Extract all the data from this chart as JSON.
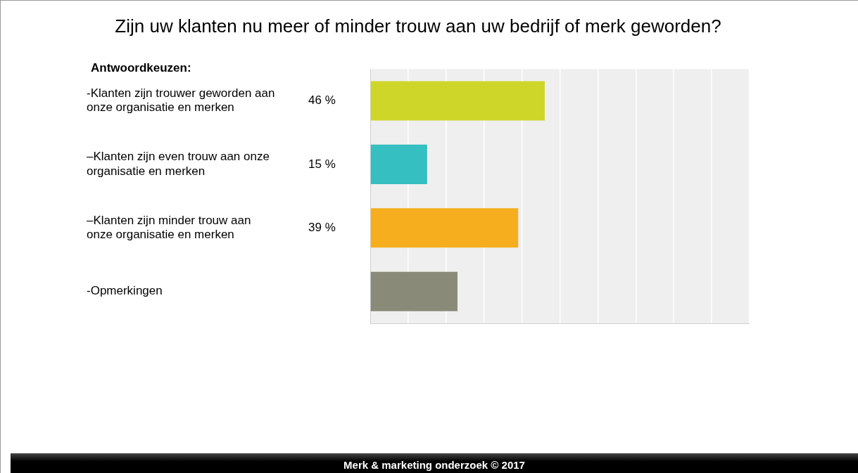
{
  "chart_data": {
    "type": "bar",
    "orientation": "horizontal",
    "title": "Zijn uw klanten nu meer of minder trouw aan uw bedrijf of merk geworden?",
    "categories": [
      "-Klanten zijn trouwer geworden aan onze organisatie en merken",
      "–Klanten zijn even trouw aan onze organisatie en merken",
      "–Klanten zijn minder trouw aan onze organisatie en merken",
      "-Opmerkingen"
    ],
    "values": [
      46,
      15,
      39,
      23
    ],
    "value_labels": [
      "46 %",
      "15 %",
      "39 %",
      null
    ],
    "colors": [
      "#cfd62a",
      "#35bfc0",
      "#f6ae1f",
      "#8a8a78"
    ],
    "xlim": [
      0,
      100
    ],
    "xticks": [
      {
        "value": 0,
        "label": null
      },
      {
        "value": 10,
        "label": null
      },
      {
        "value": 20,
        "label": null
      },
      {
        "value": 30,
        "label": null
      },
      {
        "value": 40,
        "label": null
      },
      {
        "value": 50,
        "label": null
      },
      {
        "value": 60,
        "label": null
      },
      {
        "value": 70,
        "label": null
      },
      {
        "value": 80,
        "label": null
      },
      {
        "value": 90,
        "label": null
      },
      {
        "value": 100,
        "label": null
      }
    ],
    "grid": "x",
    "tick_labels": "y",
    "annotations": [
      "Antwoordkeuzen:",
      "Merk & marketing onderzoek © 2017"
    ]
  }
}
